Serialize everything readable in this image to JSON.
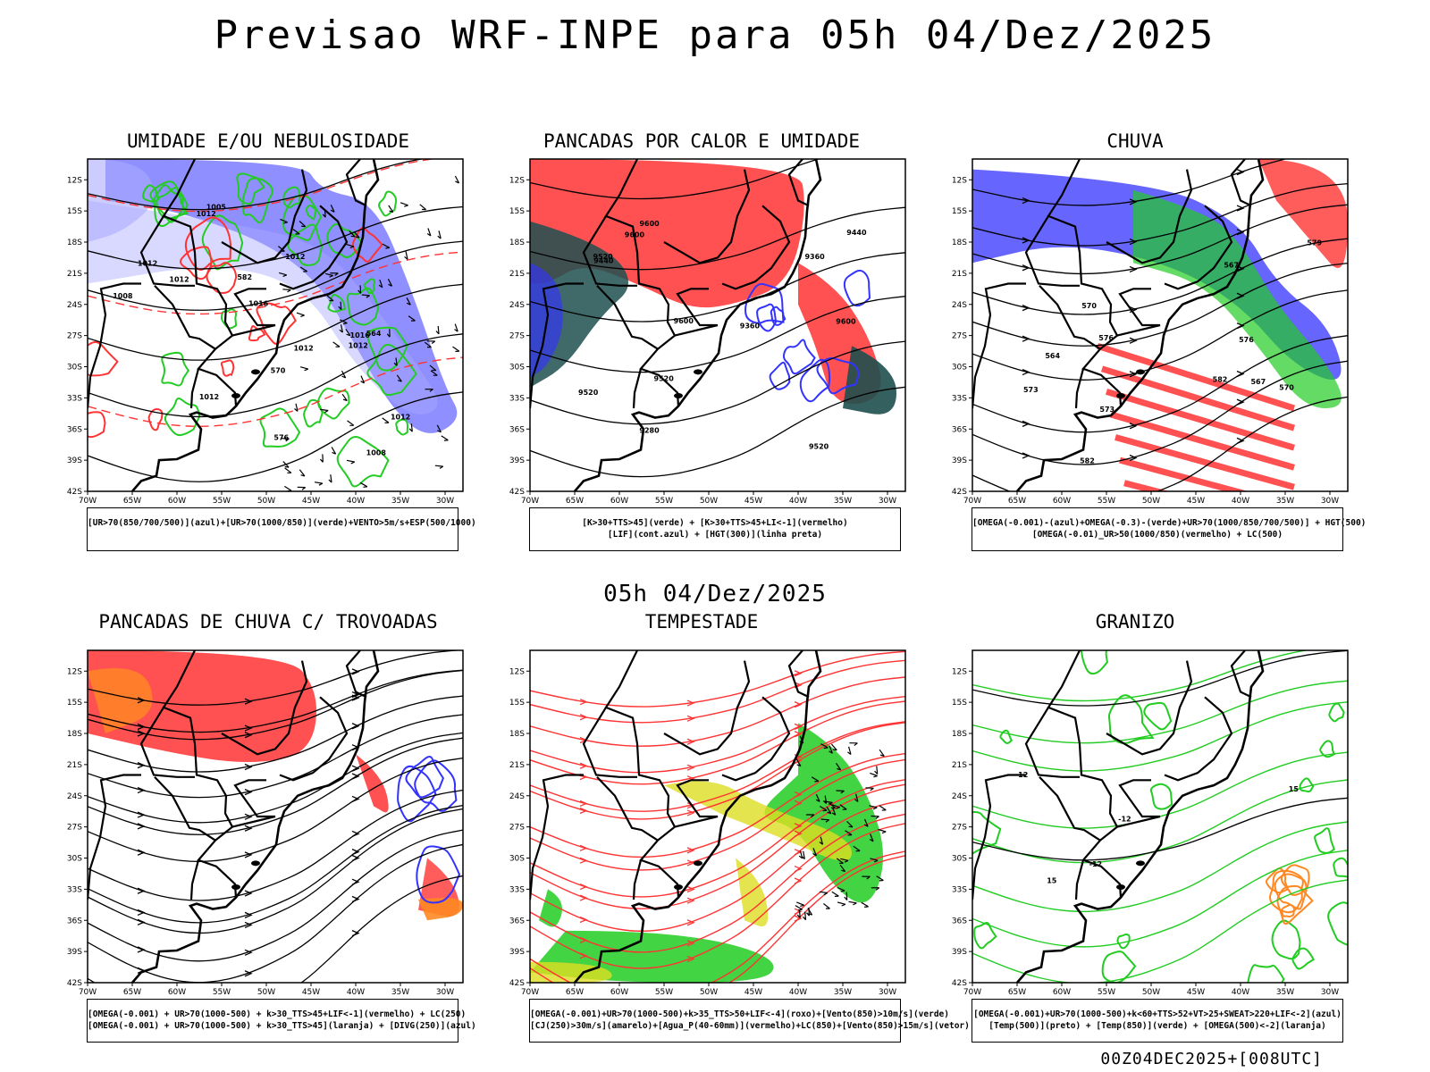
{
  "title": "Previsao WRF-INPE  para 05h 04/Dez/2025",
  "subtitle": "05h 04/Dez/2025",
  "timestamp": "00Z04DEC2025+[008UTC]",
  "axes": {
    "lat_labels": [
      "12S",
      "15S",
      "18S",
      "21S",
      "24S",
      "27S",
      "30S",
      "33S",
      "36S",
      "39S",
      "42S"
    ],
    "lon_labels": [
      "70W",
      "65W",
      "60W",
      "55W",
      "50W",
      "45W",
      "40W",
      "35W",
      "30W"
    ]
  },
  "colors": {
    "blue": "#3333ff",
    "light_blue": "#aaaaff",
    "green": "#22cc22",
    "red": "#ff3333",
    "dark_teal": "#1f4f4f",
    "orange": "#ff8822",
    "yellow": "#dddd22",
    "black": "#000000"
  },
  "panels": [
    {
      "title": "UMIDADE E/OU NEBULOSIDADE",
      "legend": [
        "[UR>70(850/700/500)](azul)+[UR>70(1000/850)](verde)+VENTO>5m/s+ESP(500/1000)"
      ],
      "contour_labels": [
        "1012",
        "1012",
        "1016",
        "1012",
        "1012",
        "1012",
        "1008",
        "1012",
        "1012",
        "1012",
        "1005",
        "1016",
        "1008",
        "564",
        "570",
        "576",
        "582"
      ]
    },
    {
      "title": "PANCADAS POR CALOR E UMIDADE",
      "legend": [
        "[K>30+TTS>45](verde) + [K>30+TTS>45+LI<-1](vermelho)",
        "[LIF](cont.azul) + [HGT(300)](linha preta)"
      ],
      "contour_labels": [
        "9600",
        "9600",
        "9600",
        "9520",
        "9520",
        "9440",
        "9360",
        "9280",
        "9520",
        "9440",
        "9360",
        "9600",
        "9520"
      ]
    },
    {
      "title": "CHUVA",
      "legend": [
        "[OMEGA(-0.001)-(azul)+OMEGA(-0.3)-(verde)+UR>70(1000/850/700/500)] + HGT(500)",
        "[OMEGA(-0.01)_UR>50(1000/850)(vermelho) + LC(500)"
      ],
      "contour_labels": [
        "582",
        "582",
        "576",
        "573",
        "570",
        "567",
        "564",
        "579",
        "576",
        "573",
        "570",
        "567"
      ]
    },
    {
      "title": "PANCADAS DE CHUVA C/ TROVOADAS",
      "legend": [
        "[OMEGA(-0.001) + UR>70(1000-500) + k>30_TTS>45+LIF<-1](vermelho) + LC(250)",
        "[OMEGA(-0.001) + UR>70(1000-500) + k>30_TTS>45](laranja) + [DIVG(250)](azul)"
      ],
      "contour_labels": []
    },
    {
      "title": "TEMPESTADE",
      "legend": [
        "[OMEGA(-0.001)+UR>70(1000-500)+k>35_TTS>50+LIF<-4](roxo)+[Vento(850)>10m/s](verde)",
        "[CJ(250)>30m/s](amarelo)+[Agua_P(40-60mm)](vermelho)+LC(850)+[Vento(850)>15m/s](vetor)"
      ],
      "contour_labels": []
    },
    {
      "title": "GRANIZO",
      "legend": [
        "[OMEGA(-0.001)+UR>70(1000-500)+k<60+TTS>52+VT>25+SWEAT>220+LIF<-2](azul)",
        "[Temp(500)](preto) + [Temp(850)](verde) + [OMEGA(500)<-2](laranja)"
      ],
      "contour_labels": [
        "-12",
        "-12",
        "15",
        "15",
        "-12"
      ]
    }
  ]
}
